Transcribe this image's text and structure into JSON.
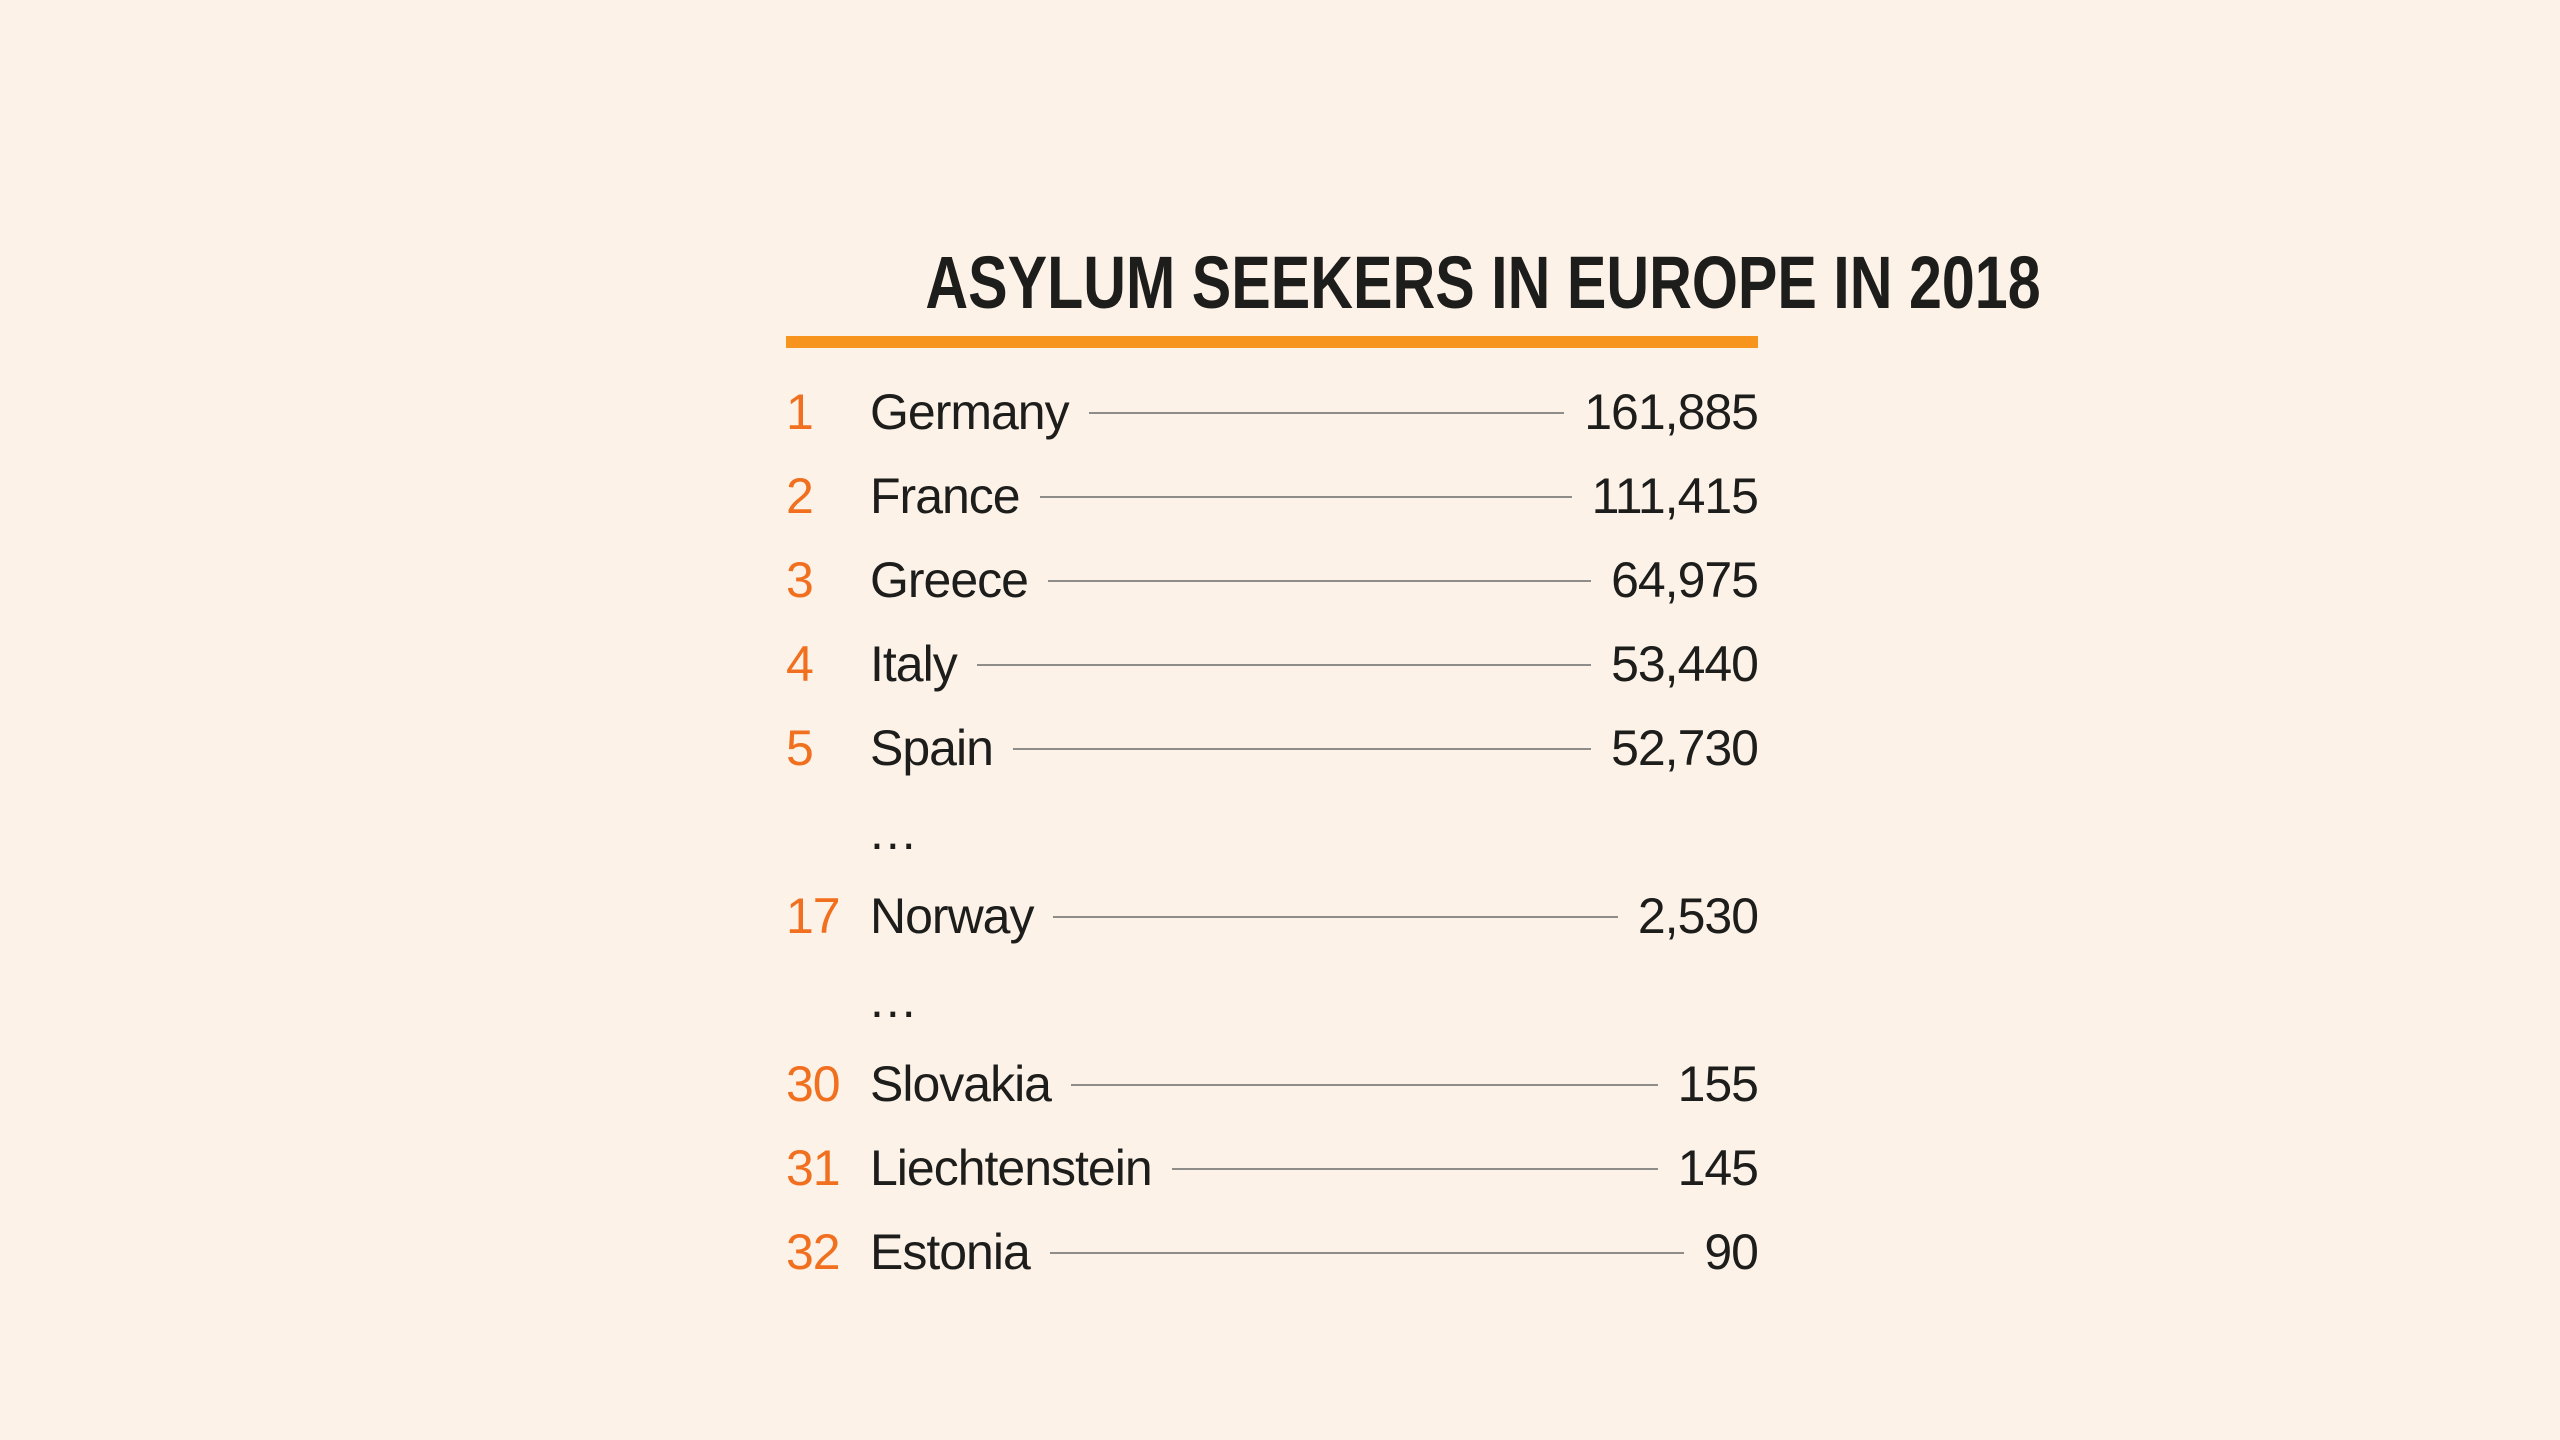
{
  "title": "ASYLUM SEEKERS IN EUROPE IN 2018",
  "colors": {
    "background": "#FCF2E8",
    "title_underline": "#F7941E",
    "rank_number": "#F1701F",
    "text": "#1D1D1B",
    "leader_line": "#8F8D8A"
  },
  "chart_data": {
    "type": "table",
    "title": "ASYLUM SEEKERS IN EUROPE IN 2018",
    "columns": [
      "rank",
      "country",
      "asylum_seekers"
    ],
    "rows": [
      {
        "rank": "1",
        "country": "Germany",
        "value": "161,885",
        "ellipsis": false
      },
      {
        "rank": "2",
        "country": "France",
        "value": "111,415",
        "ellipsis": false
      },
      {
        "rank": "3",
        "country": "Greece",
        "value": "64,975",
        "ellipsis": false
      },
      {
        "rank": "4",
        "country": "Italy",
        "value": "53,440",
        "ellipsis": false
      },
      {
        "rank": "5",
        "country": "Spain",
        "value": "52,730",
        "ellipsis": false
      },
      {
        "rank": "",
        "country": "...",
        "value": "",
        "ellipsis": true
      },
      {
        "rank": "17",
        "country": "Norway",
        "value": "2,530",
        "ellipsis": false
      },
      {
        "rank": "",
        "country": "...",
        "value": "",
        "ellipsis": true
      },
      {
        "rank": "30",
        "country": "Slovakia",
        "value": "155",
        "ellipsis": false
      },
      {
        "rank": "31",
        "country": "Liechtenstein",
        "value": "145",
        "ellipsis": false
      },
      {
        "rank": "32",
        "country": "Estonia",
        "value": "90",
        "ellipsis": false
      }
    ]
  }
}
